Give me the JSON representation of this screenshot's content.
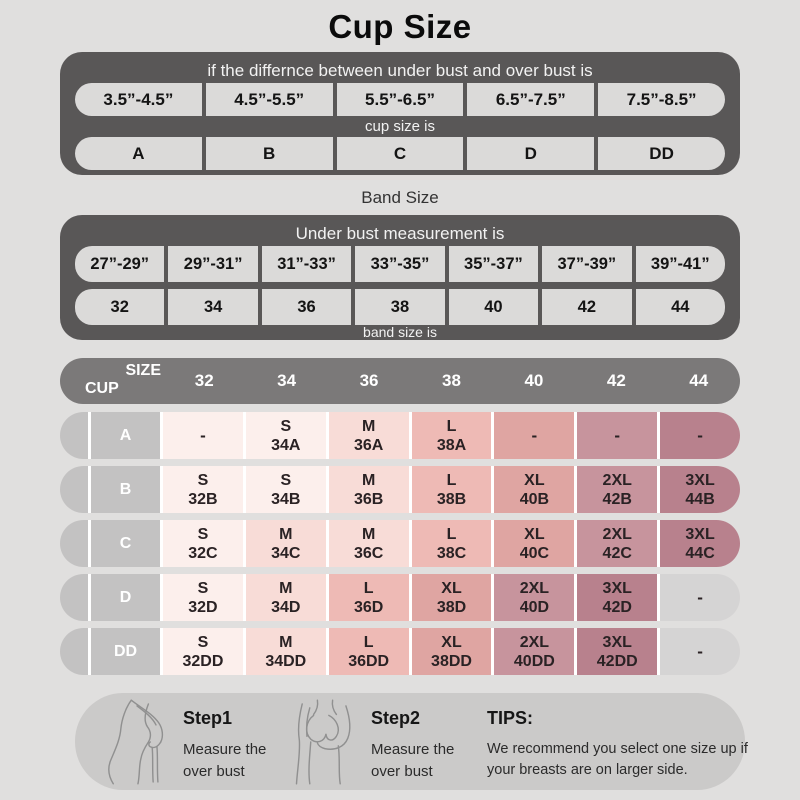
{
  "title": "Cup Size",
  "cup_panel": {
    "header": "if the differnce between under bust and over bust is",
    "ranges": [
      "3.5”-4.5”",
      "4.5”-5.5”",
      "5.5”-6.5”",
      "6.5”-7.5”",
      "7.5”-8.5”"
    ],
    "mid_label": "cup size is",
    "cups": [
      "A",
      "B",
      "C",
      "D",
      "DD"
    ]
  },
  "band_section": {
    "title": "Band Size",
    "header": "Under bust measurement is",
    "ranges": [
      "27”-29”",
      "29”-31”",
      "31”-33”",
      "33”-35”",
      "35”-37”",
      "37”-39”",
      "39”-41”"
    ],
    "bands": [
      "32",
      "34",
      "36",
      "38",
      "40",
      "42",
      "44"
    ],
    "footer_label": "band size is"
  },
  "matrix": {
    "corner_top": "SIZE",
    "corner_bottom": "CUP",
    "columns": [
      "32",
      "34",
      "36",
      "38",
      "40",
      "42",
      "44"
    ],
    "rows": [
      {
        "cup": "A",
        "cells": [
          [
            "-",
            "",
            "s"
          ],
          [
            "S",
            "34A",
            "s"
          ],
          [
            "M",
            "36A",
            "m"
          ],
          [
            "L",
            "38A",
            "l"
          ],
          [
            "-",
            "",
            "xl"
          ],
          [
            "-",
            "",
            "xxl"
          ],
          [
            "-",
            "",
            "xxxl"
          ]
        ]
      },
      {
        "cup": "B",
        "cells": [
          [
            "S",
            "32B",
            "s"
          ],
          [
            "S",
            "34B",
            "s"
          ],
          [
            "M",
            "36B",
            "m"
          ],
          [
            "L",
            "38B",
            "l"
          ],
          [
            "XL",
            "40B",
            "xl"
          ],
          [
            "2XL",
            "42B",
            "xxl"
          ],
          [
            "3XL",
            "44B",
            "xxxl"
          ]
        ]
      },
      {
        "cup": "C",
        "cells": [
          [
            "S",
            "32C",
            "s"
          ],
          [
            "M",
            "34C",
            "m"
          ],
          [
            "M",
            "36C",
            "m"
          ],
          [
            "L",
            "38C",
            "l"
          ],
          [
            "XL",
            "40C",
            "xl"
          ],
          [
            "2XL",
            "42C",
            "xxl"
          ],
          [
            "3XL",
            "44C",
            "xxxl"
          ]
        ]
      },
      {
        "cup": "D",
        "cells": [
          [
            "S",
            "32D",
            "s"
          ],
          [
            "M",
            "34D",
            "m"
          ],
          [
            "L",
            "36D",
            "l"
          ],
          [
            "XL",
            "38D",
            "xl"
          ],
          [
            "2XL",
            "40D",
            "xxl"
          ],
          [
            "3XL",
            "42D",
            "xxxl"
          ],
          [
            "-",
            "",
            "gray"
          ]
        ]
      },
      {
        "cup": "DD",
        "cells": [
          [
            "S",
            "32DD",
            "s"
          ],
          [
            "M",
            "34DD",
            "m"
          ],
          [
            "L",
            "36DD",
            "l"
          ],
          [
            "XL",
            "38DD",
            "xl"
          ],
          [
            "2XL",
            "40DD",
            "xxl"
          ],
          [
            "3XL",
            "42DD",
            "xxxl"
          ],
          [
            "-",
            "",
            "gray"
          ]
        ]
      }
    ]
  },
  "palette": {
    "page_bg": "#e0dfde",
    "panel_dark": "#595757",
    "pill": "#dbdad9",
    "header_bar": "#7b7979",
    "row_label": "#c3c2c2",
    "gray": "#d5d4d4",
    "s": "#fcefec",
    "m": "#f8dcd7",
    "l": "#eebab5",
    "xl": "#dfa5a2",
    "xxl": "#c7949d",
    "xxxl": "#b8818d",
    "footer_bg": "#cbcac9"
  },
  "footer": {
    "steps": [
      {
        "label": "Step1",
        "desc": "Measure the over bust"
      },
      {
        "label": "Step2",
        "desc": "Measure the over bust"
      }
    ],
    "tips_label": "TIPS:",
    "tips_text": "We recommend you select one size up if your breasts are on larger side."
  }
}
